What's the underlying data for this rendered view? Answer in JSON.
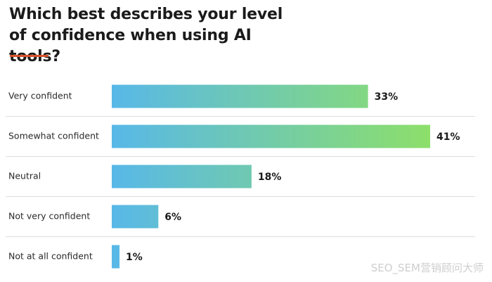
{
  "chart_data": {
    "type": "bar",
    "orientation": "horizontal",
    "title": "Which best describes your level of confidence when using AI tools?",
    "categories": [
      "Very confident",
      "Somewhat confident",
      "Neutral",
      "Not very confident",
      "Not at all confident"
    ],
    "values": [
      33,
      41,
      18,
      6,
      1
    ],
    "value_labels": [
      "33%",
      "41%",
      "18%",
      "6%",
      "1%"
    ],
    "xlim": [
      0,
      41
    ],
    "grid": false,
    "legend": "none",
    "colors": {
      "bar_gradient_start": "#58b8e8",
      "bar_gradient_end": "#8ddf6a",
      "accent": "#d9532c",
      "separator": "#dddddd"
    }
  },
  "watermark": "SEO_SEM营销顾问大师"
}
